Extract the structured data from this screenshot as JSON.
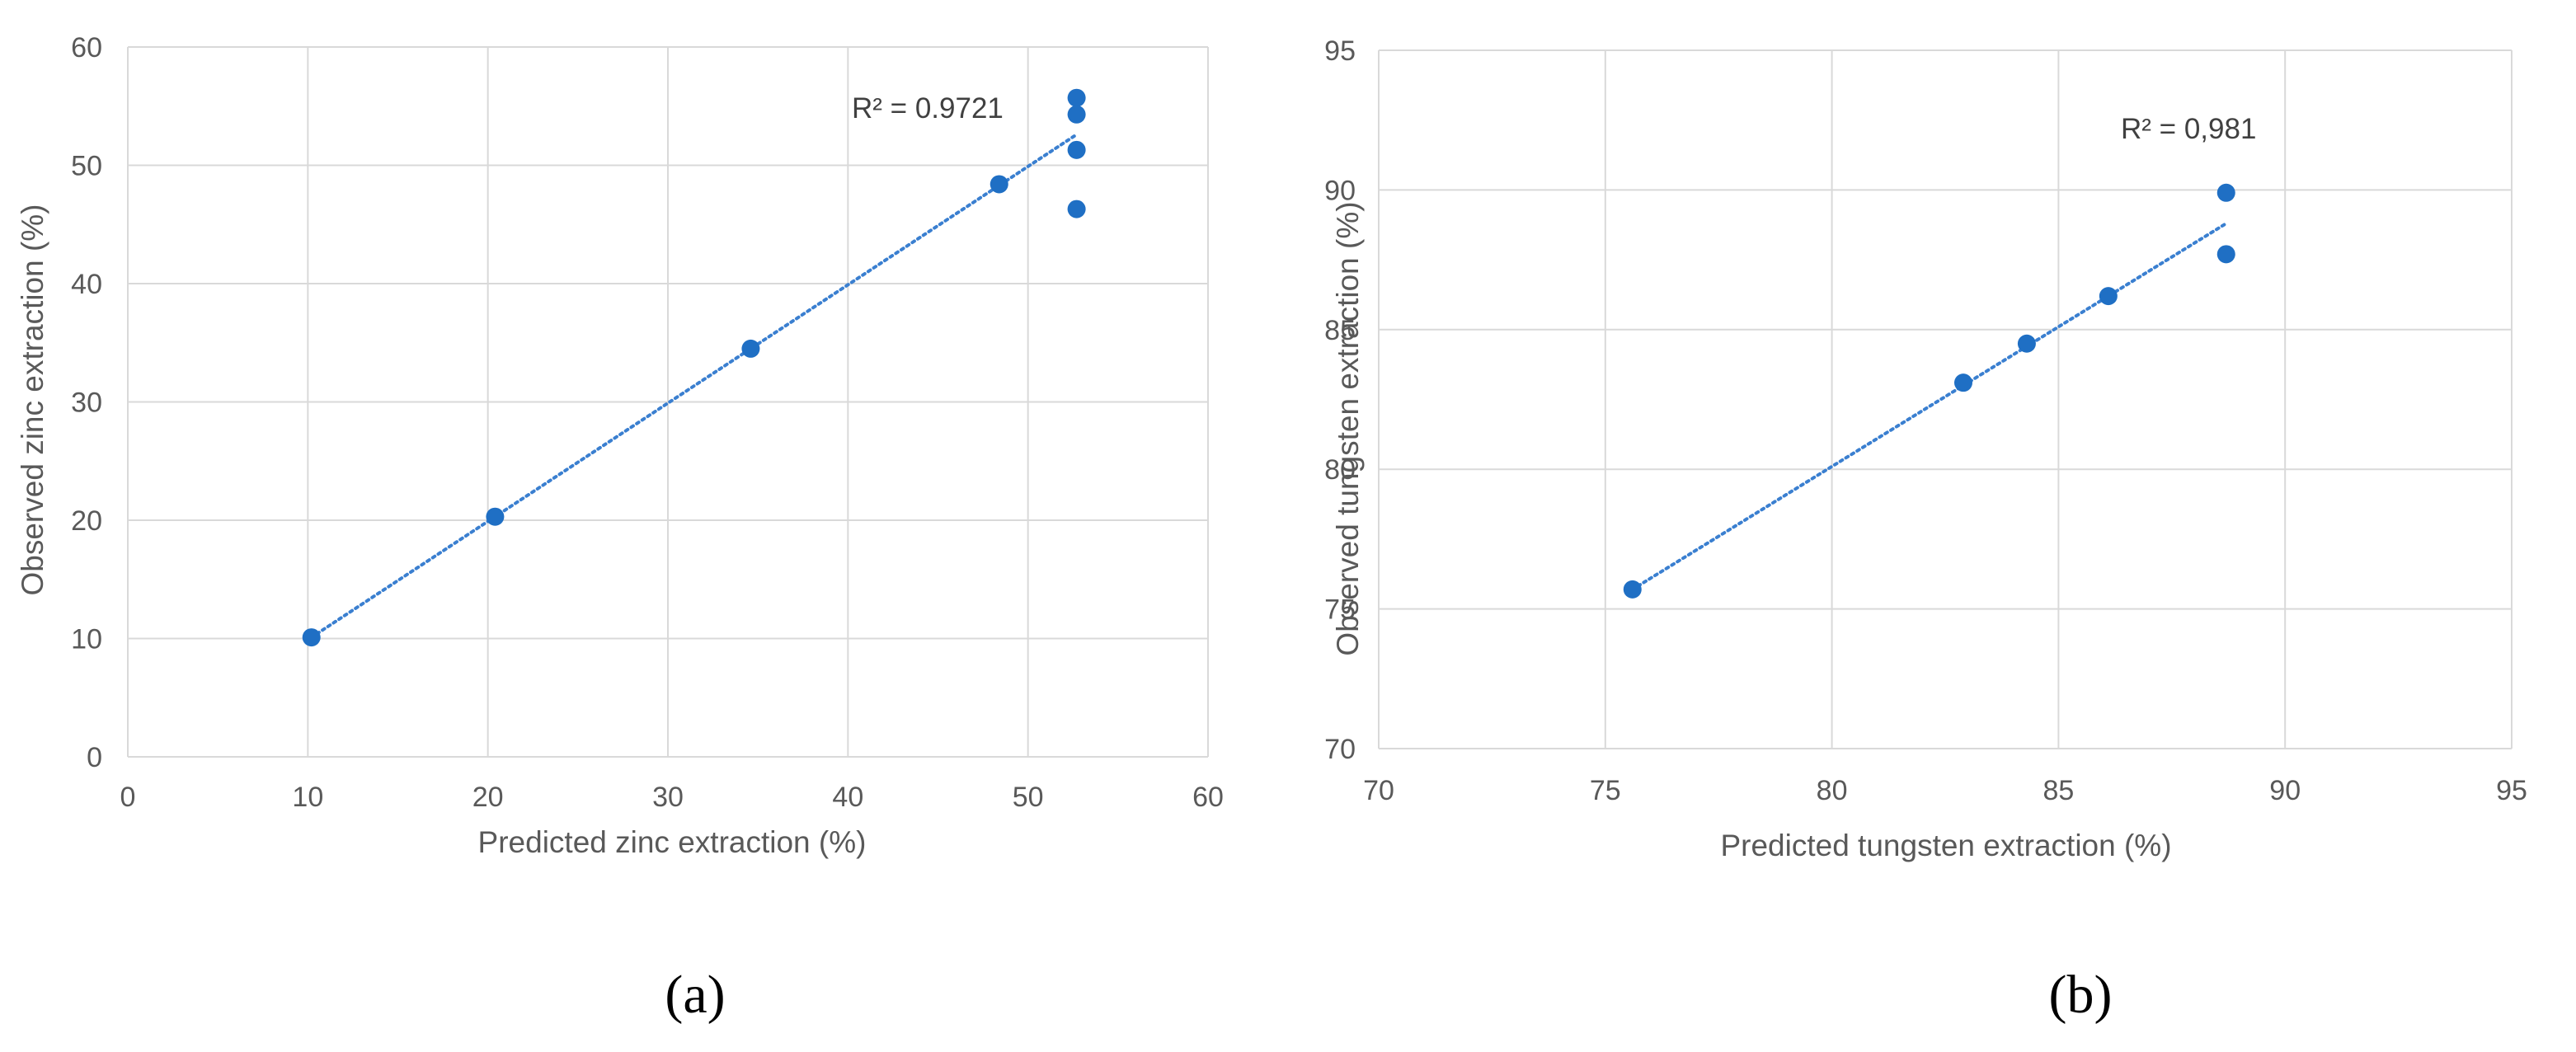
{
  "colors": {
    "marker": "#1f6fc4",
    "trendline": "#3a7fd0",
    "grid": "#d9d9d9",
    "text": "#595959"
  },
  "chart_data": [
    {
      "type": "scatter",
      "panel_label": "(a)",
      "xlabel": "Predicted zinc extraction (%)",
      "ylabel": "Observed zinc extraction (%)",
      "xlim": [
        0,
        60
      ],
      "ylim": [
        0,
        60
      ],
      "x_ticks": [
        0,
        10,
        20,
        30,
        40,
        50,
        60
      ],
      "y_ticks": [
        0,
        10,
        20,
        30,
        40,
        50,
        60
      ],
      "grid": true,
      "points": [
        {
          "x": 10.2,
          "y": 10.1
        },
        {
          "x": 20.4,
          "y": 20.3
        },
        {
          "x": 34.6,
          "y": 34.5
        },
        {
          "x": 48.4,
          "y": 48.4
        },
        {
          "x": 52.7,
          "y": 55.7
        },
        {
          "x": 52.7,
          "y": 54.3
        },
        {
          "x": 52.7,
          "y": 51.3
        },
        {
          "x": 52.7,
          "y": 46.3
        }
      ],
      "trendline": {
        "style": "dotted",
        "from": {
          "x": 10.2,
          "y": 10.1
        },
        "to": {
          "x": 52.7,
          "y": 52.6
        }
      },
      "annotation": {
        "text": "R² = 0.9721",
        "x": 40.3,
        "y": 54.2
      }
    },
    {
      "type": "scatter",
      "panel_label": "(b)",
      "xlabel": "Predicted tungsten  extraction (%)",
      "ylabel": "Observed tungsten  extraction (%)",
      "xlim": [
        70,
        95
      ],
      "ylim": [
        70,
        95
      ],
      "x_ticks": [
        70,
        75,
        80,
        85,
        90,
        95
      ],
      "y_ticks": [
        70,
        75,
        80,
        85,
        90,
        95
      ],
      "grid": true,
      "points": [
        {
          "x": 75.6,
          "y": 75.7
        },
        {
          "x": 82.9,
          "y": 83.1
        },
        {
          "x": 84.3,
          "y": 84.5
        },
        {
          "x": 86.1,
          "y": 86.2
        },
        {
          "x": 88.7,
          "y": 89.9
        },
        {
          "x": 88.7,
          "y": 87.7
        }
      ],
      "trendline": {
        "style": "dotted",
        "from": {
          "x": 75.6,
          "y": 75.7
        },
        "to": {
          "x": 88.7,
          "y": 88.8
        }
      },
      "annotation": {
        "text": "R² = 0,981",
        "x": 84.8,
        "y": 92.2
      }
    }
  ]
}
